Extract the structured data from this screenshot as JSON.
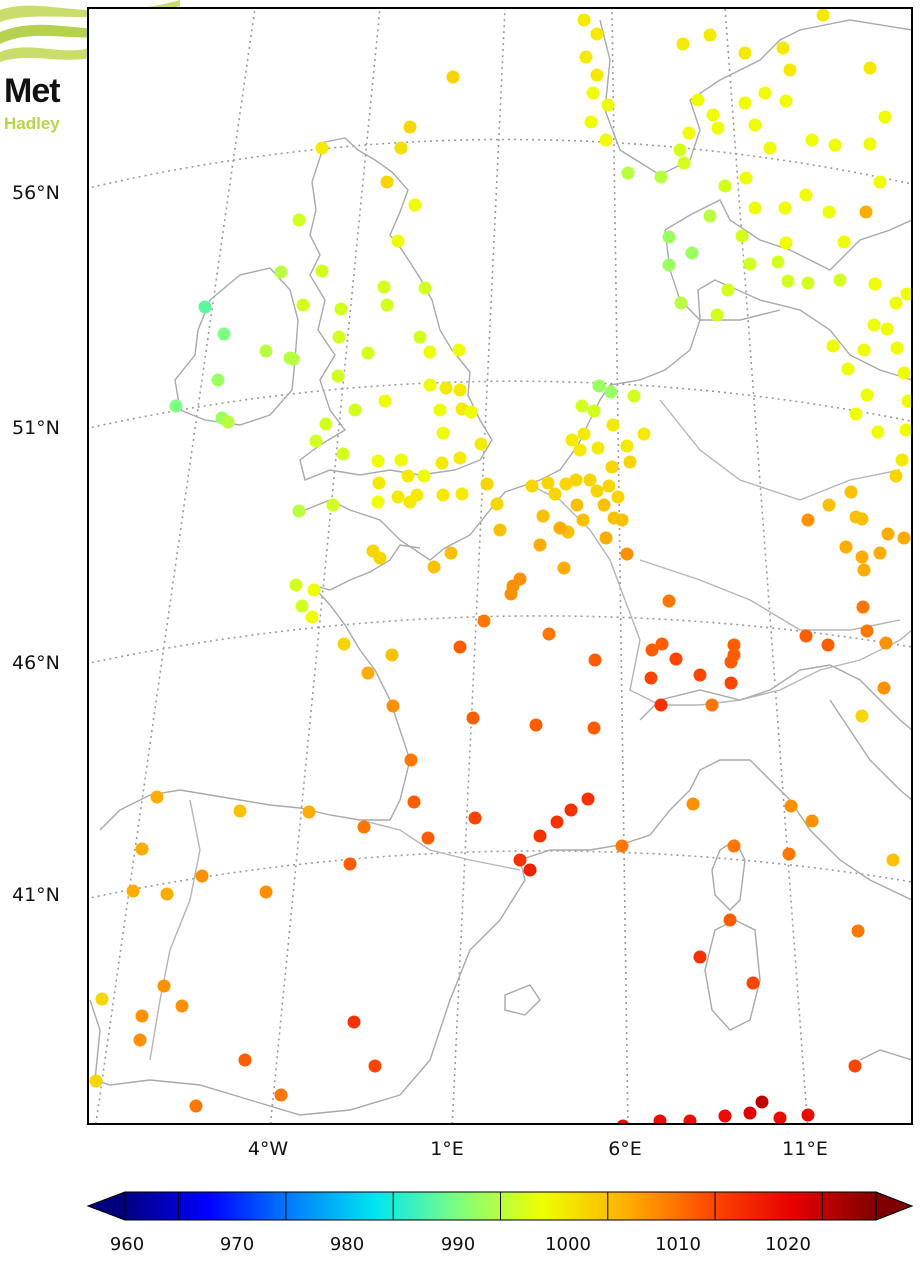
{
  "logo": {
    "line1": "Met",
    "line2": "Hadley"
  },
  "lat_labels": [
    "56°N",
    "51°N",
    "46°N",
    "41°N"
  ],
  "lon_labels": [
    "4°W",
    "1°E",
    "6°E",
    "11°E"
  ],
  "colorbar": {
    "ticks": [
      "960",
      "970",
      "980",
      "990",
      "1000",
      "1010",
      "1020"
    ],
    "min": 955,
    "max": 1025,
    "colormap": [
      "#00007f",
      "#0000ff",
      "#007fff",
      "#00e5f0",
      "#7fff7f",
      "#eeff00",
      "#ffb000",
      "#ff4a00",
      "#e60000",
      "#7f0000"
    ]
  },
  "colors": {
    "coastline": "#a9a9a9",
    "graticule": "#9a9a9a",
    "frame": "#000000"
  },
  "stations": [
    [
      322,
      148,
      996
    ],
    [
      401,
      148,
      997
    ],
    [
      410,
      127,
      998
    ],
    [
      453,
      77,
      998
    ],
    [
      299,
      220,
      992
    ],
    [
      387,
      182,
      998
    ],
    [
      415,
      205,
      994
    ],
    [
      398,
      241,
      994
    ],
    [
      281,
      272,
      990
    ],
    [
      322,
      271,
      992
    ],
    [
      205,
      307,
      984
    ],
    [
      224,
      334,
      986
    ],
    [
      266,
      351,
      990
    ],
    [
      293,
      359,
      990
    ],
    [
      303,
      305,
      992
    ],
    [
      341,
      309,
      992
    ],
    [
      384,
      287,
      992
    ],
    [
      387,
      305,
      992
    ],
    [
      425,
      288,
      992
    ],
    [
      339,
      337,
      992
    ],
    [
      368,
      353,
      992
    ],
    [
      420,
      337,
      992
    ],
    [
      430,
      352,
      994
    ],
    [
      459,
      350,
      994
    ],
    [
      218,
      380,
      988
    ],
    [
      290,
      358,
      990
    ],
    [
      338,
      376,
      992
    ],
    [
      385,
      401,
      994
    ],
    [
      430,
      385,
      994
    ],
    [
      446,
      388,
      996
    ],
    [
      460,
      390,
      996
    ],
    [
      462,
      409,
      996
    ],
    [
      176,
      406,
      986
    ],
    [
      222,
      418,
      988
    ],
    [
      228,
      422,
      990
    ],
    [
      326,
      424,
      992
    ],
    [
      355,
      410,
      992
    ],
    [
      440,
      410,
      994
    ],
    [
      443,
      433,
      994
    ],
    [
      471,
      412,
      994
    ],
    [
      481,
      444,
      996
    ],
    [
      316,
      441,
      992
    ],
    [
      343,
      454,
      992
    ],
    [
      378,
      461,
      994
    ],
    [
      401,
      460,
      994
    ],
    [
      424,
      476,
      994
    ],
    [
      442,
      463,
      996
    ],
    [
      460,
      458,
      996
    ],
    [
      379,
      483,
      996
    ],
    [
      398,
      497,
      996
    ],
    [
      408,
      476,
      996
    ],
    [
      417,
      495,
      996
    ],
    [
      443,
      495,
      996
    ],
    [
      462,
      494,
      996
    ],
    [
      487,
      484,
      998
    ],
    [
      299,
      511,
      990
    ],
    [
      333,
      505,
      992
    ],
    [
      378,
      502,
      994
    ],
    [
      410,
      502,
      996
    ],
    [
      497,
      504,
      998
    ],
    [
      532,
      486,
      998
    ],
    [
      548,
      483,
      998
    ],
    [
      555,
      494,
      998
    ],
    [
      566,
      484,
      998
    ],
    [
      576,
      480,
      998
    ],
    [
      590,
      480,
      998
    ],
    [
      597,
      491,
      998
    ],
    [
      609,
      486,
      998
    ],
    [
      618,
      497,
      998
    ],
    [
      612,
      467,
      998
    ],
    [
      572,
      440,
      996
    ],
    [
      580,
      450,
      996
    ],
    [
      584,
      434,
      996
    ],
    [
      598,
      448,
      996
    ],
    [
      627,
      446,
      996
    ],
    [
      644,
      434,
      996
    ],
    [
      599,
      386,
      988
    ],
    [
      611,
      392,
      988
    ],
    [
      582,
      406,
      992
    ],
    [
      594,
      411,
      992
    ],
    [
      634,
      396,
      992
    ],
    [
      613,
      425,
      996
    ],
    [
      630,
      462,
      998
    ],
    [
      604,
      505,
      1000
    ],
    [
      614,
      518,
      1000
    ],
    [
      622,
      520,
      1000
    ],
    [
      577,
      505,
      1000
    ],
    [
      583,
      520,
      1000
    ],
    [
      568,
      532,
      1000
    ],
    [
      543,
      516,
      1000
    ],
    [
      500,
      530,
      1000
    ],
    [
      540,
      545,
      1002
    ],
    [
      560,
      528,
      1002
    ],
    [
      606,
      538,
      1002
    ],
    [
      627,
      554,
      1004
    ],
    [
      511,
      594,
      1004
    ],
    [
      513,
      586,
      1004
    ],
    [
      520,
      579,
      1004
    ],
    [
      564,
      568,
      1002
    ],
    [
      484,
      621,
      1006
    ],
    [
      549,
      634,
      1006
    ],
    [
      460,
      647,
      1008
    ],
    [
      380,
      558,
      998
    ],
    [
      373,
      551,
      998
    ],
    [
      434,
      567,
      1000
    ],
    [
      451,
      553,
      1000
    ],
    [
      296,
      585,
      992
    ],
    [
      302,
      606,
      992
    ],
    [
      314,
      590,
      994
    ],
    [
      312,
      617,
      994
    ],
    [
      344,
      644,
      998
    ],
    [
      392,
      655,
      1000
    ],
    [
      368,
      673,
      1002
    ],
    [
      393,
      706,
      1004
    ],
    [
      411,
      760,
      1006
    ],
    [
      414,
      802,
      1008
    ],
    [
      428,
      838,
      1008
    ],
    [
      473,
      718,
      1008
    ],
    [
      536,
      725,
      1008
    ],
    [
      595,
      660,
      1008
    ],
    [
      594,
      728,
      1008
    ],
    [
      475,
      818,
      1010
    ],
    [
      540,
      836,
      1012
    ],
    [
      557,
      822,
      1012
    ],
    [
      571,
      810,
      1012
    ],
    [
      588,
      799,
      1012
    ],
    [
      520,
      860,
      1012
    ],
    [
      530,
      870,
      1014
    ],
    [
      622,
      846,
      1006
    ],
    [
      669,
      601,
      1006
    ],
    [
      652,
      650,
      1008
    ],
    [
      662,
      644,
      1008
    ],
    [
      676,
      659,
      1010
    ],
    [
      651,
      678,
      1010
    ],
    [
      661,
      705,
      1012
    ],
    [
      700,
      675,
      1010
    ],
    [
      712,
      705,
      1006
    ],
    [
      731,
      683,
      1010
    ],
    [
      734,
      655,
      1008
    ],
    [
      734,
      645,
      1008
    ],
    [
      731,
      662,
      1008
    ],
    [
      806,
      636,
      1008
    ],
    [
      828,
      645,
      1008
    ],
    [
      863,
      607,
      1006
    ],
    [
      867,
      631,
      1006
    ],
    [
      886,
      643,
      1004
    ],
    [
      884,
      688,
      1004
    ],
    [
      862,
      716,
      998
    ],
    [
      693,
      804,
      1004
    ],
    [
      734,
      846,
      1006
    ],
    [
      789,
      854,
      1006
    ],
    [
      791,
      806,
      1004
    ],
    [
      812,
      821,
      1004
    ],
    [
      730,
      920,
      1008
    ],
    [
      700,
      957,
      1012
    ],
    [
      753,
      983,
      1010
    ],
    [
      858,
      931,
      1006
    ],
    [
      855,
      1066,
      1010
    ],
    [
      157,
      797,
      1002
    ],
    [
      240,
      811,
      1000
    ],
    [
      309,
      812,
      1002
    ],
    [
      364,
      827,
      1006
    ],
    [
      350,
      864,
      1008
    ],
    [
      142,
      849,
      1002
    ],
    [
      133,
      891,
      1002
    ],
    [
      167,
      894,
      1002
    ],
    [
      202,
      876,
      1004
    ],
    [
      266,
      892,
      1004
    ],
    [
      102,
      999,
      998
    ],
    [
      96,
      1081,
      998
    ],
    [
      164,
      986,
      1004
    ],
    [
      182,
      1006,
      1004
    ],
    [
      142,
      1016,
      1004
    ],
    [
      140,
      1040,
      1004
    ],
    [
      354,
      1022,
      1012
    ],
    [
      375,
      1066,
      1010
    ],
    [
      245,
      1060,
      1008
    ],
    [
      281,
      1095,
      1006
    ],
    [
      196,
      1106,
      1006
    ],
    [
      623,
      1126,
      1016
    ],
    [
      660,
      1121,
      1016
    ],
    [
      690,
      1121,
      1016
    ],
    [
      725,
      1116,
      1016
    ],
    [
      750,
      1113,
      1018
    ],
    [
      762,
      1102,
      1020
    ],
    [
      780,
      1118,
      1016
    ],
    [
      808,
      1115,
      1016
    ],
    [
      584,
      20,
      996
    ],
    [
      597,
      34,
      996
    ],
    [
      586,
      57,
      996
    ],
    [
      597,
      75,
      996
    ],
    [
      593,
      93,
      994
    ],
    [
      608,
      105,
      994
    ],
    [
      591,
      122,
      994
    ],
    [
      606,
      140,
      994
    ],
    [
      628,
      173,
      990
    ],
    [
      661,
      177,
      990
    ],
    [
      684,
      163,
      992
    ],
    [
      680,
      150,
      992
    ],
    [
      689,
      133,
      994
    ],
    [
      710,
      35,
      996
    ],
    [
      683,
      44,
      996
    ],
    [
      745,
      53,
      996
    ],
    [
      783,
      48,
      996
    ],
    [
      790,
      70,
      996
    ],
    [
      698,
      100,
      994
    ],
    [
      713,
      115,
      994
    ],
    [
      745,
      103,
      994
    ],
    [
      765,
      93,
      994
    ],
    [
      786,
      101,
      994
    ],
    [
      718,
      128,
      994
    ],
    [
      755,
      125,
      994
    ],
    [
      770,
      148,
      994
    ],
    [
      812,
      140,
      994
    ],
    [
      835,
      145,
      994
    ],
    [
      870,
      144,
      994
    ],
    [
      885,
      117,
      994
    ],
    [
      870,
      68,
      996
    ],
    [
      823,
      15,
      996
    ],
    [
      725,
      186,
      992
    ],
    [
      746,
      178,
      994
    ],
    [
      755,
      208,
      994
    ],
    [
      785,
      208,
      994
    ],
    [
      806,
      195,
      994
    ],
    [
      829,
      212,
      994
    ],
    [
      866,
      212,
      1002
    ],
    [
      880,
      182,
      994
    ],
    [
      844,
      242,
      994
    ],
    [
      786,
      243,
      994
    ],
    [
      778,
      262,
      992
    ],
    [
      669,
      237,
      988
    ],
    [
      669,
      265,
      988
    ],
    [
      692,
      253,
      988
    ],
    [
      710,
      216,
      990
    ],
    [
      742,
      236,
      992
    ],
    [
      750,
      264,
      992
    ],
    [
      788,
      281,
      992
    ],
    [
      808,
      283,
      992
    ],
    [
      840,
      280,
      992
    ],
    [
      875,
      284,
      994
    ],
    [
      681,
      303,
      990
    ],
    [
      728,
      290,
      992
    ],
    [
      717,
      315,
      992
    ],
    [
      896,
      303,
      994
    ],
    [
      907,
      294,
      994
    ],
    [
      874,
      325,
      994
    ],
    [
      887,
      329,
      994
    ],
    [
      897,
      348,
      994
    ],
    [
      864,
      350,
      994
    ],
    [
      833,
      346,
      994
    ],
    [
      848,
      369,
      994
    ],
    [
      867,
      395,
      994
    ],
    [
      878,
      432,
      994
    ],
    [
      856,
      414,
      994
    ],
    [
      904,
      373,
      994
    ],
    [
      908,
      401,
      994
    ],
    [
      906,
      430,
      994
    ],
    [
      902,
      460,
      996
    ],
    [
      896,
      476,
      998
    ],
    [
      851,
      492,
      1000
    ],
    [
      829,
      505,
      1000
    ],
    [
      808,
      520,
      1004
    ],
    [
      856,
      517,
      1000
    ],
    [
      862,
      519,
      1000
    ],
    [
      888,
      534,
      1002
    ],
    [
      904,
      538,
      1002
    ],
    [
      846,
      547,
      1002
    ],
    [
      862,
      557,
      1002
    ],
    [
      864,
      570,
      1002
    ],
    [
      880,
      553,
      1002
    ],
    [
      893,
      860,
      1000
    ]
  ]
}
